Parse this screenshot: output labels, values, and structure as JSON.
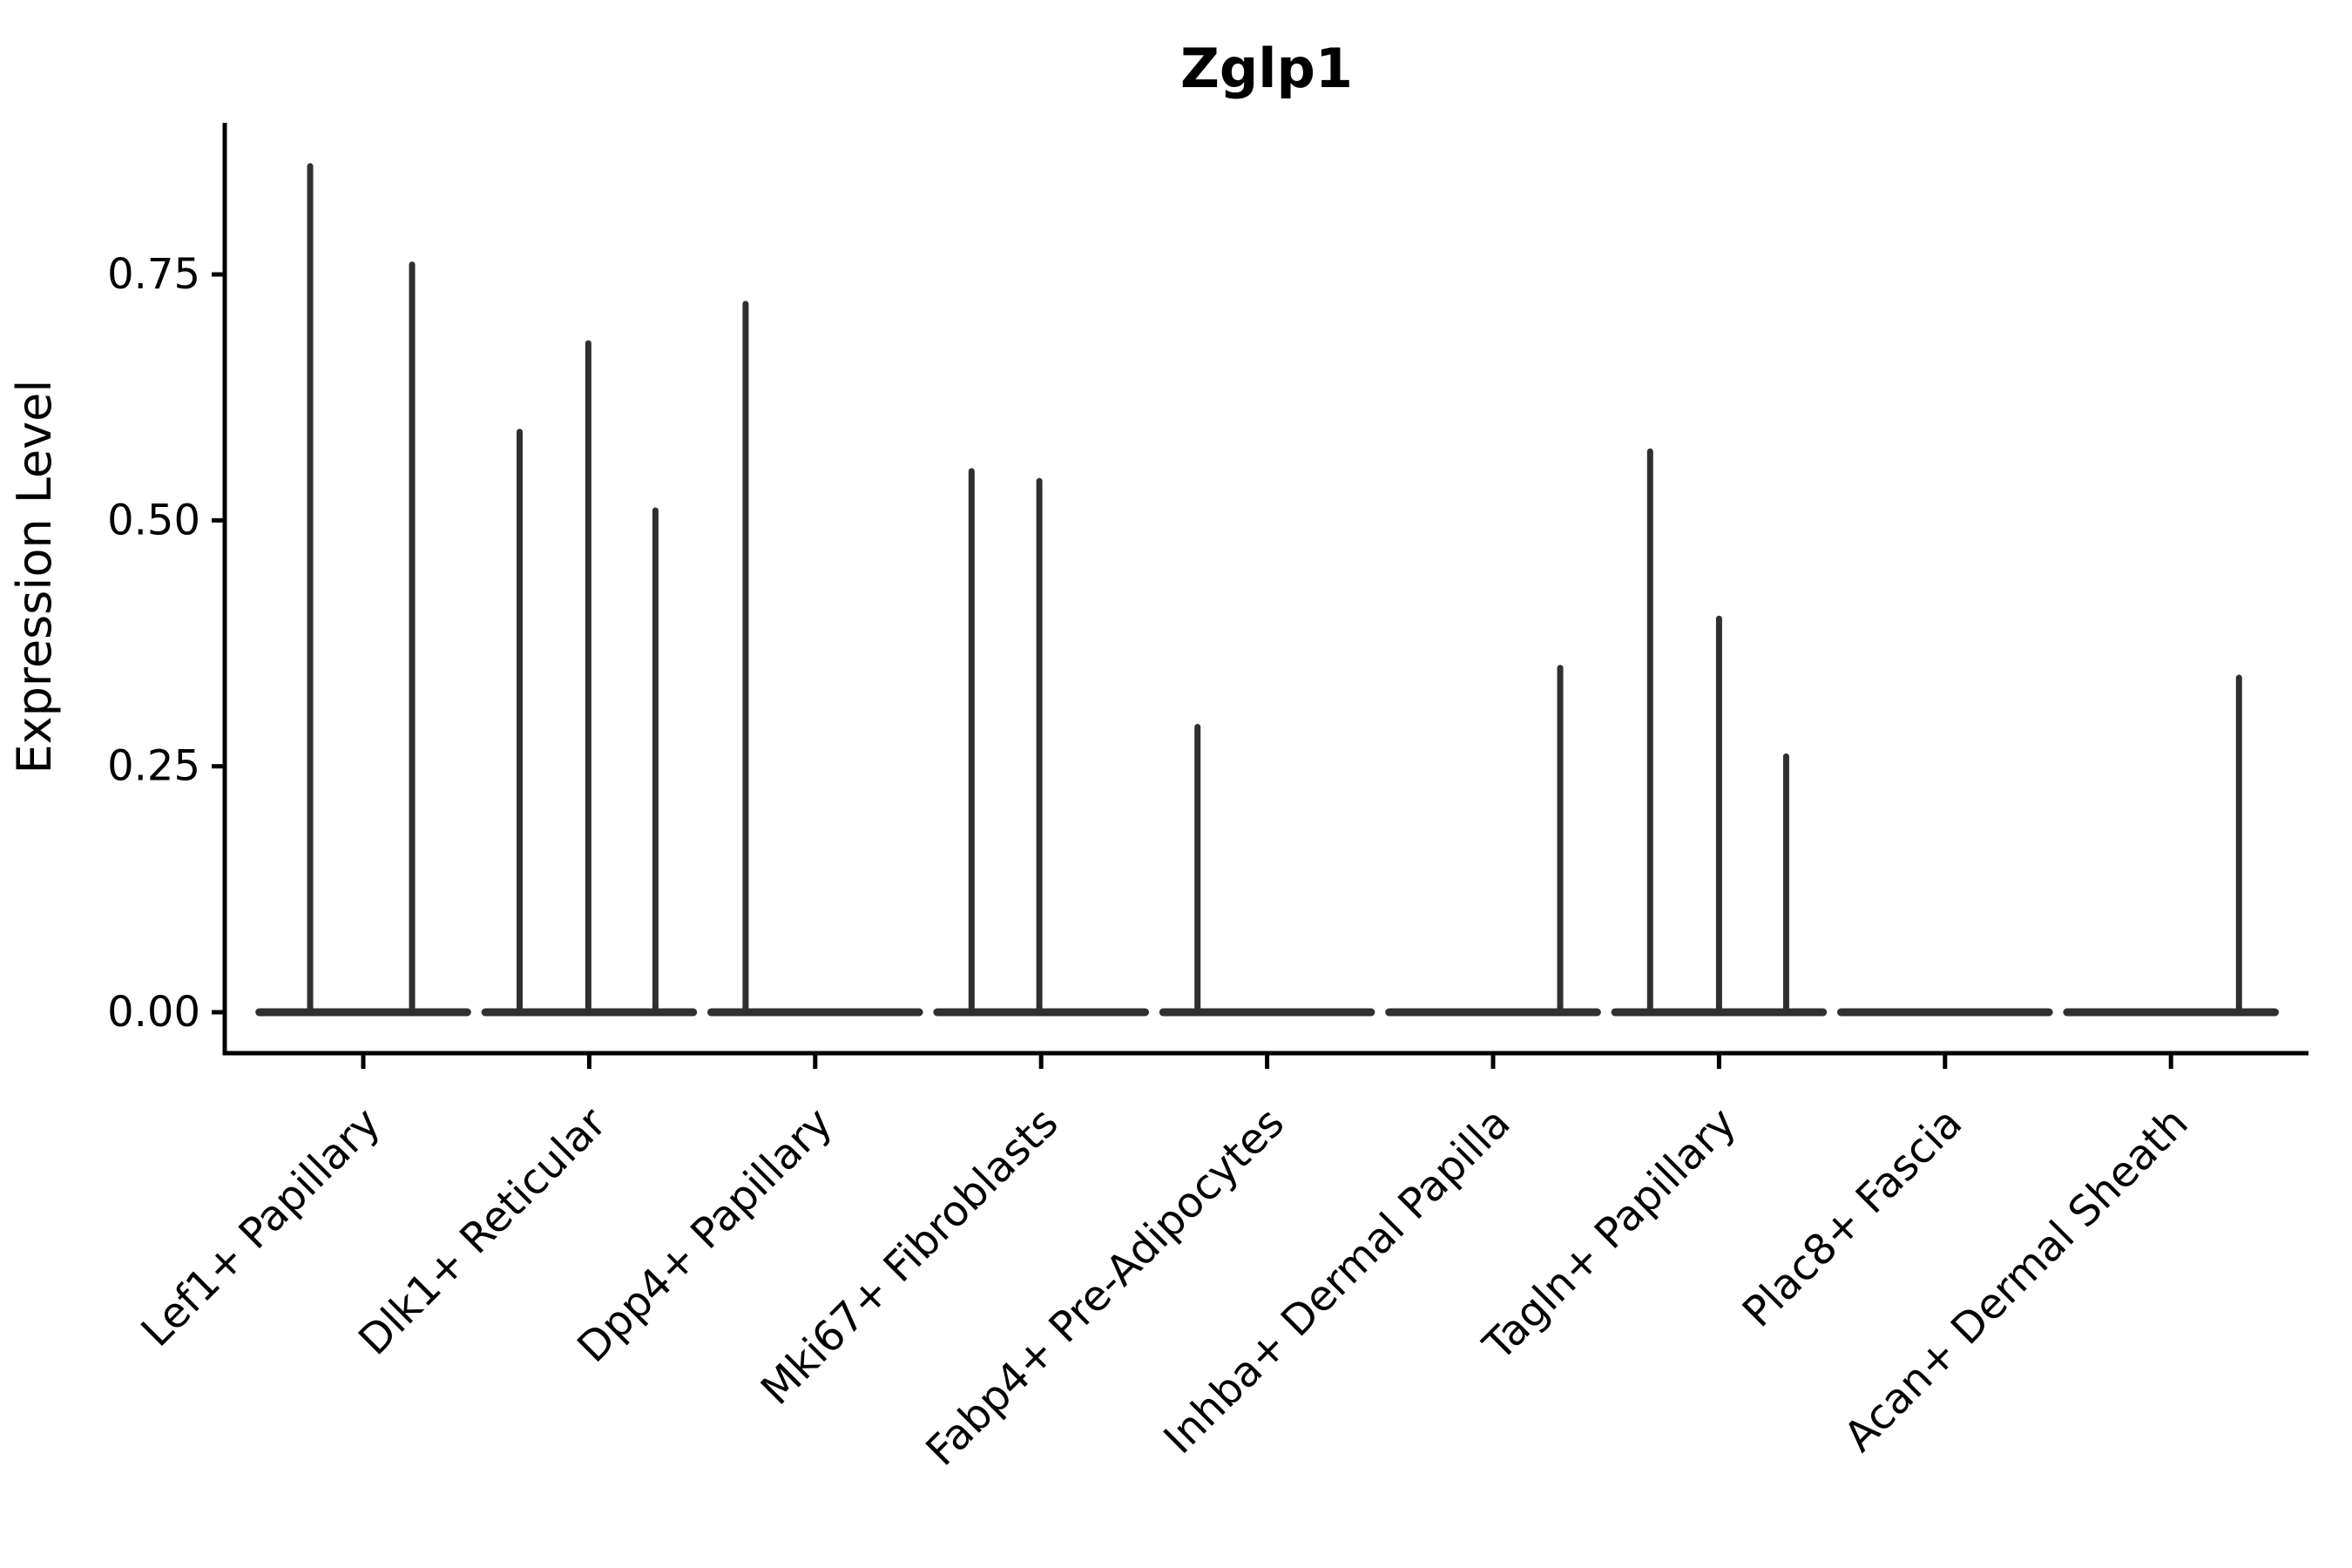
{
  "chart_data": {
    "type": "violin",
    "title": "Zglp1",
    "xlabel": "",
    "ylabel": "Expression Level",
    "y_ticks": [
      {
        "value": 0.0,
        "label": "0.00"
      },
      {
        "value": 0.25,
        "label": "0.25"
      },
      {
        "value": 0.5,
        "label": "0.50"
      },
      {
        "value": 0.75,
        "label": "0.75"
      }
    ],
    "ylim": [
      -0.042,
      0.905
    ],
    "grid": false,
    "legend": "none",
    "x_tick_rotation_deg": 45,
    "violin_width": 0.92,
    "categories": [
      "Lef1+ Papillary",
      "Dlk1+ Reticular",
      "Dpp4+ Papillary",
      "Mki67+ Fibroblasts",
      "Fabp4+ Pre-Adipocytes",
      "Inhba+ Dermal Papilla",
      "Tagln+ Papillary",
      "Plac8+ Fascia",
      "Acan+ Dermal Sheath"
    ],
    "violins": [
      {
        "category": "Lef1+ Papillary",
        "spikes": [
          {
            "offset": -0.235,
            "value": 0.86
          },
          {
            "offset": 0.216,
            "value": 0.76
          }
        ]
      },
      {
        "category": "Dlk1+ Reticular",
        "spikes": [
          {
            "offset": -0.308,
            "value": 0.59
          },
          {
            "offset": -0.004,
            "value": 0.68
          },
          {
            "offset": 0.293,
            "value": 0.51
          }
        ]
      },
      {
        "category": "Dpp4+ Papillary",
        "spikes": [
          {
            "offset": -0.308,
            "value": 0.72
          }
        ]
      },
      {
        "category": "Mki67+ Fibroblasts",
        "spikes": [
          {
            "offset": -0.308,
            "value": 0.55
          },
          {
            "offset": -0.008,
            "value": 0.54
          }
        ]
      },
      {
        "category": "Fabp4+ Pre-Adipocytes",
        "spikes": [
          {
            "offset": -0.308,
            "value": 0.29
          }
        ]
      },
      {
        "category": "Inhba+ Dermal Papilla",
        "spikes": [
          {
            "offset": 0.297,
            "value": 0.35
          }
        ]
      },
      {
        "category": "Tagln+ Papillary",
        "spikes": [
          {
            "offset": -0.305,
            "value": 0.57
          },
          {
            "offset": 0.0,
            "value": 0.4
          },
          {
            "offset": 0.297,
            "value": 0.26
          }
        ]
      },
      {
        "category": "Plac8+ Fascia",
        "spikes": []
      },
      {
        "category": "Acan+ Dermal Sheath",
        "spikes": [
          {
            "offset": 0.301,
            "value": 0.34
          }
        ]
      }
    ]
  },
  "colors": {
    "background": "#ffffff",
    "violin": "#303030",
    "axis": "#000000",
    "text": "#000000"
  }
}
